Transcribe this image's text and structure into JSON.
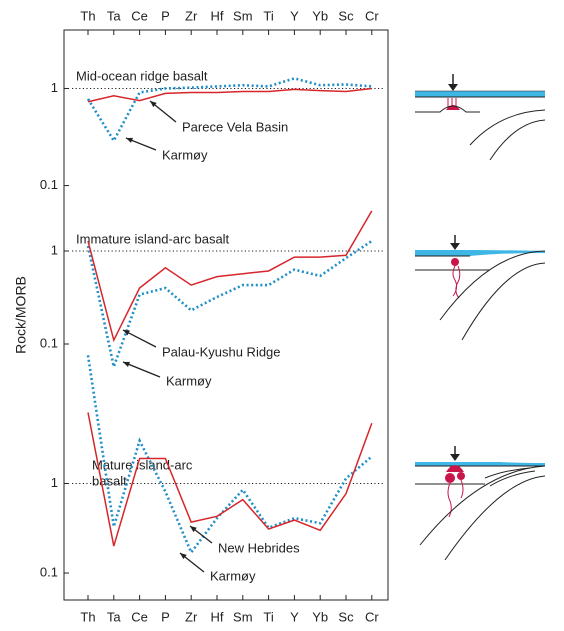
{
  "chart_data": [
    {
      "type": "line",
      "title": "Mid-ocean ridge basalt",
      "log_y": true,
      "ylim": [
        0.08,
        4
      ],
      "yticks": [
        1,
        0.1
      ],
      "ref_line": 1,
      "categories": [
        "Th",
        "Ta",
        "Ce",
        "P",
        "Zr",
        "Hf",
        "Sm",
        "Ti",
        "Y",
        "Yb",
        "Sc",
        "Cr"
      ],
      "series": [
        {
          "name": "Parece Vela Basin",
          "color": "#d7262b",
          "values": [
            0.73,
            0.84,
            0.75,
            0.89,
            0.91,
            0.91,
            0.93,
            0.93,
            0.98,
            0.95,
            0.93,
            1.0
          ]
        },
        {
          "name": "Karmøy",
          "color": "#1f8fc8",
          "values": [
            0.78,
            0.29,
            0.91,
            1.0,
            1.02,
            1.05,
            1.08,
            1.05,
            1.27,
            1.08,
            1.1,
            1.05
          ]
        }
      ]
    },
    {
      "type": "line",
      "title": "Immature island-arc basalt",
      "log_y": true,
      "ylim": [
        0.025,
        4
      ],
      "yticks": [
        1,
        0.1
      ],
      "ref_line": 1,
      "y_label": "Rock/MORB",
      "categories": [
        "Th",
        "Ta",
        "Ce",
        "P",
        "Zr",
        "Hf",
        "Sm",
        "Ti",
        "Y",
        "Yb",
        "Sc",
        "Cr"
      ],
      "series": [
        {
          "name": "Palau-Kyushu Ridge",
          "color": "#d7262b",
          "values": [
            1.28,
            0.11,
            0.4,
            0.66,
            0.43,
            0.53,
            0.57,
            0.61,
            0.86,
            0.86,
            0.9,
            2.7
          ]
        },
        {
          "name": "Karmøy",
          "color": "#1f8fc8",
          "values": [
            1.13,
            0.057,
            0.34,
            0.4,
            0.23,
            0.32,
            0.43,
            0.43,
            0.63,
            0.54,
            0.84,
            1.28
          ]
        }
      ]
    },
    {
      "type": "line",
      "title": [
        "Mature island-arc",
        "basalt"
      ],
      "log_y": true,
      "ylim": [
        0.05,
        40
      ],
      "yticks": [
        1,
        0.1
      ],
      "ref_line": 1,
      "categories": [
        "Th",
        "Ta",
        "Ce",
        "P",
        "Zr",
        "Hf",
        "Sm",
        "Ti",
        "Y",
        "Yb",
        "Sc",
        "Cr"
      ],
      "series": [
        {
          "name": "New Hebrides",
          "color": "#d7262b",
          "values": [
            6.2,
            0.2,
            1.9,
            1.9,
            0.37,
            0.43,
            0.66,
            0.31,
            0.39,
            0.3,
            0.77,
            4.7
          ]
        },
        {
          "name": "Karmøy",
          "color": "#1f8fc8",
          "values": [
            27,
            0.33,
            3.0,
            0.81,
            0.17,
            0.41,
            0.85,
            0.32,
            0.41,
            0.36,
            1.14,
            2.0
          ]
        }
      ]
    }
  ]
}
